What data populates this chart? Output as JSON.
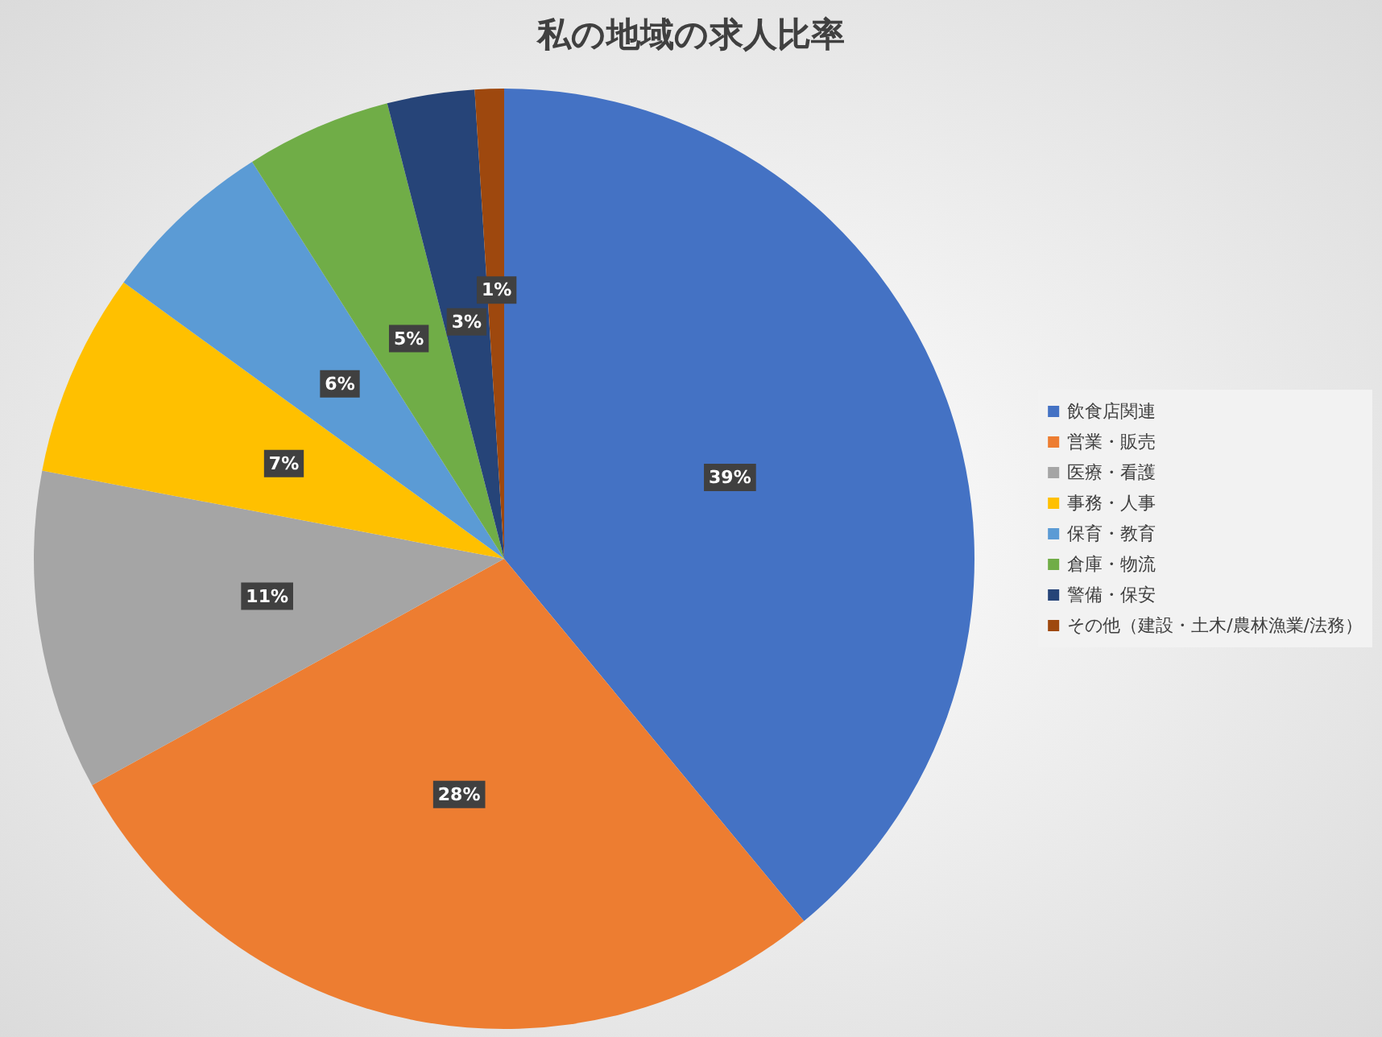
{
  "chart_data": {
    "type": "pie",
    "title": "私の地域の求人比率",
    "categories": [
      "飲食店関連",
      "営業・販売",
      "医療・看護",
      "事務・人事",
      "保育・教育",
      "倉庫・物流",
      "警備・保安",
      "その他（建設・土木/農林漁業/法務）"
    ],
    "values": [
      39,
      28,
      11,
      7,
      6,
      5,
      3,
      1
    ],
    "value_labels": [
      "39%",
      "28%",
      "11%",
      "7%",
      "6%",
      "5%",
      "3%",
      "1%"
    ],
    "colors": [
      "#4472c4",
      "#ed7d31",
      "#a5a5a5",
      "#ffc000",
      "#5b9bd5",
      "#70ad47",
      "#264478",
      "#9e480e"
    ],
    "legend": "right"
  }
}
